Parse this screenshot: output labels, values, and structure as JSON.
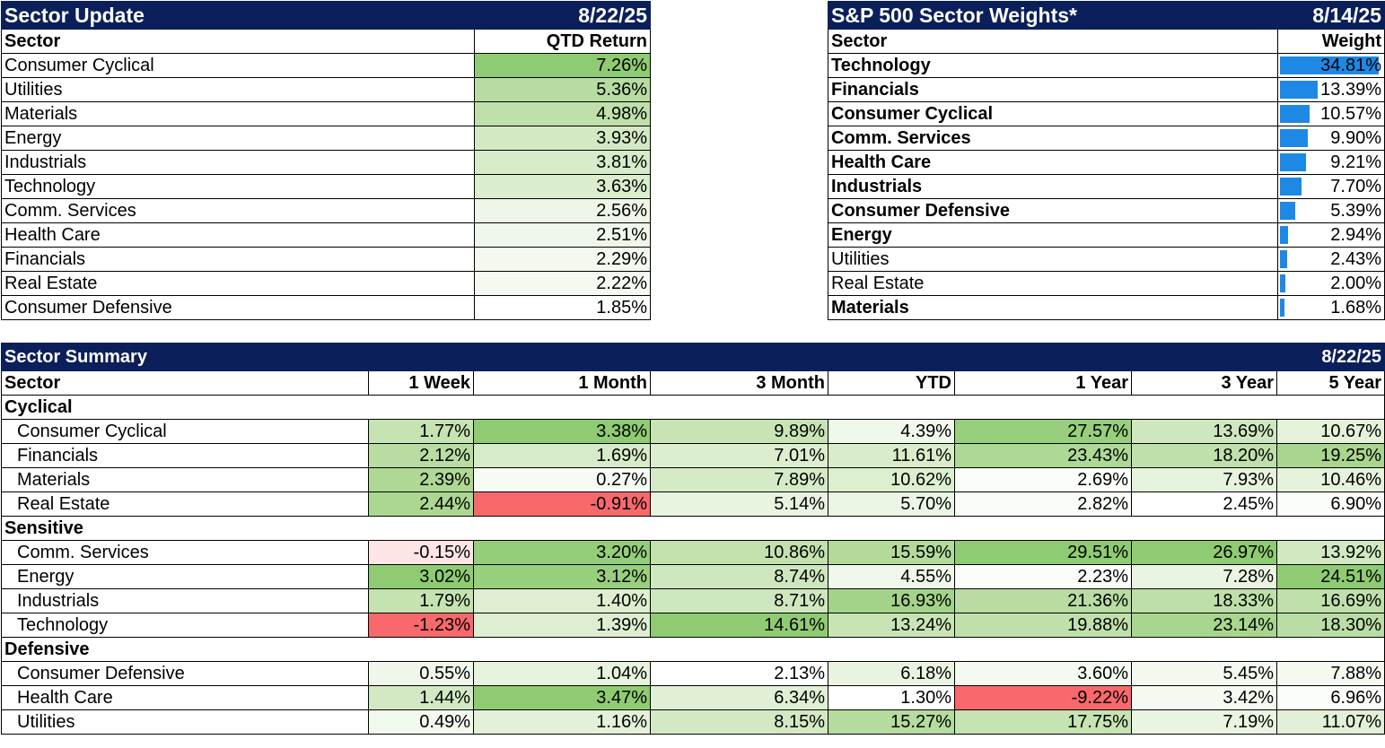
{
  "sector_update": {
    "title": "Sector Update",
    "date": "8/22/25",
    "header_sector": "Sector",
    "header_return": "QTD Return",
    "rows": [
      {
        "sector": "Consumer Cyclical",
        "value": "7.26%",
        "color": "#8fcb72"
      },
      {
        "sector": "Utilities",
        "value": "5.36%",
        "color": "#b7dca1"
      },
      {
        "sector": "Materials",
        "value": "4.98%",
        "color": "#bfe0aa"
      },
      {
        "sector": "Energy",
        "value": "3.93%",
        "color": "#d3e9c4"
      },
      {
        "sector": "Industrials",
        "value": "3.81%",
        "color": "#d6ebc7"
      },
      {
        "sector": "Technology",
        "value": "3.63%",
        "color": "#daedcc"
      },
      {
        "sector": "Comm. Services",
        "value": "2.56%",
        "color": "#eef6e8"
      },
      {
        "sector": "Health Care",
        "value": "2.51%",
        "color": "#eff7ea"
      },
      {
        "sector": "Financials",
        "value": "2.29%",
        "color": "#f3f9ef"
      },
      {
        "sector": "Real Estate",
        "value": "2.22%",
        "color": "#f5faf1"
      },
      {
        "sector": "Consumer Defensive",
        "value": "1.85%",
        "color": "#ffffff"
      }
    ]
  },
  "sector_weights": {
    "title": "S&P 500 Sector Weights*",
    "date": "8/14/25",
    "header_sector": "Sector",
    "header_weight": "Weight",
    "bar_color": "#1e88e5",
    "rows": [
      {
        "sector": "Technology",
        "value": "34.81%",
        "weight": 34.81,
        "bold": true
      },
      {
        "sector": "Financials",
        "value": "13.39%",
        "weight": 13.39,
        "bold": true
      },
      {
        "sector": "Consumer Cyclical",
        "value": "10.57%",
        "weight": 10.57,
        "bold": true
      },
      {
        "sector": "Comm. Services",
        "value": "9.90%",
        "weight": 9.9,
        "bold": true
      },
      {
        "sector": "Health Care",
        "value": "9.21%",
        "weight": 9.21,
        "bold": true
      },
      {
        "sector": "Industrials",
        "value": "7.70%",
        "weight": 7.7,
        "bold": true
      },
      {
        "sector": "Consumer Defensive",
        "value": "5.39%",
        "weight": 5.39,
        "bold": true
      },
      {
        "sector": "Energy",
        "value": "2.94%",
        "weight": 2.94,
        "bold": true
      },
      {
        "sector": "Utilities",
        "value": "2.43%",
        "weight": 2.43,
        "bold": false
      },
      {
        "sector": "Real Estate",
        "value": "2.00%",
        "weight": 2.0,
        "bold": false
      },
      {
        "sector": "Materials",
        "value": "1.68%",
        "weight": 1.68,
        "bold": true
      }
    ]
  },
  "sector_summary": {
    "title": "Sector Summary",
    "date": "8/22/25",
    "headers": [
      "Sector",
      "1 Week",
      "1 Month",
      "3 Month",
      "YTD",
      "1 Year",
      "3 Year",
      "5 Year"
    ],
    "groups": [
      {
        "name": "Cyclical",
        "rows": [
          {
            "sector": "Consumer Cyclical",
            "cells": [
              {
                "v": "1.77%",
                "c": "#c6e3b2"
              },
              {
                "v": "3.38%",
                "c": "#8fcb72"
              },
              {
                "v": "9.89%",
                "c": "#c8e4b5"
              },
              {
                "v": "4.39%",
                "c": "#f0f7eb"
              },
              {
                "v": "27.57%",
                "c": "#97cf7c"
              },
              {
                "v": "13.69%",
                "c": "#cfe7be"
              },
              {
                "v": "10.67%",
                "c": "#e4f2da"
              }
            ]
          },
          {
            "sector": "Financials",
            "cells": [
              {
                "v": "2.12%",
                "c": "#b8dca2"
              },
              {
                "v": "1.69%",
                "c": "#d6ebc7"
              },
              {
                "v": "7.01%",
                "c": "#dbeecd"
              },
              {
                "v": "11.61%",
                "c": "#d9edcb"
              },
              {
                "v": "23.43%",
                "c": "#add896"
              },
              {
                "v": "18.20%",
                "c": "#bfe0aa"
              },
              {
                "v": "19.25%",
                "c": "#a9d68f"
              }
            ]
          },
          {
            "sector": "Materials",
            "cells": [
              {
                "v": "2.39%",
                "c": "#aed894"
              },
              {
                "v": "0.27%",
                "c": "#f6fbf3"
              },
              {
                "v": "7.89%",
                "c": "#d5eac6"
              },
              {
                "v": "10.62%",
                "c": "#dcefcf"
              },
              {
                "v": "2.69%",
                "c": "#fafdf8"
              },
              {
                "v": "7.93%",
                "c": "#e6f3dd"
              },
              {
                "v": "10.46%",
                "c": "#e5f3dc"
              }
            ]
          },
          {
            "sector": "Real Estate",
            "cells": [
              {
                "v": "2.44%",
                "c": "#acd793"
              },
              {
                "v": "-0.91%",
                "c": "#f8696b"
              },
              {
                "v": "5.14%",
                "c": "#e8f4e0"
              },
              {
                "v": "5.70%",
                "c": "#ebf5e4"
              },
              {
                "v": "2.82%",
                "c": "#f9fcf7"
              },
              {
                "v": "2.45%",
                "c": "#ffffff"
              },
              {
                "v": "6.90%",
                "c": "#fbfdf9"
              }
            ]
          }
        ]
      },
      {
        "name": "Sensitive",
        "rows": [
          {
            "sector": "Comm. Services",
            "cells": [
              {
                "v": "-0.15%",
                "c": "#fde5e5"
              },
              {
                "v": "3.20%",
                "c": "#95ce7a"
              },
              {
                "v": "10.86%",
                "c": "#c2e1ad"
              },
              {
                "v": "15.59%",
                "c": "#b3da9b"
              },
              {
                "v": "29.51%",
                "c": "#8fcb72"
              },
              {
                "v": "26.97%",
                "c": "#8fcb72"
              },
              {
                "v": "13.92%",
                "c": "#d1e8c1"
              }
            ]
          },
          {
            "sector": "Energy",
            "cells": [
              {
                "v": "3.02%",
                "c": "#8fcb72"
              },
              {
                "v": "3.12%",
                "c": "#98cf7d"
              },
              {
                "v": "8.74%",
                "c": "#cfe7bf"
              },
              {
                "v": "4.55%",
                "c": "#f0f8eb"
              },
              {
                "v": "2.23%",
                "c": "#fbfdf9"
              },
              {
                "v": "7.28%",
                "c": "#e9f4e1"
              },
              {
                "v": "24.51%",
                "c": "#8fcb72"
              }
            ]
          },
          {
            "sector": "Industrials",
            "cells": [
              {
                "v": "1.79%",
                "c": "#c5e3b1"
              },
              {
                "v": "1.40%",
                "c": "#ddefd0"
              },
              {
                "v": "8.71%",
                "c": "#cfe7bf"
              },
              {
                "v": "16.93%",
                "c": "#a2d388"
              },
              {
                "v": "21.36%",
                "c": "#b8dca2"
              },
              {
                "v": "18.33%",
                "c": "#bedfa9"
              },
              {
                "v": "16.69%",
                "c": "#c0e0ab"
              }
            ]
          },
          {
            "sector": "Technology",
            "cells": [
              {
                "v": "-1.23%",
                "c": "#f8696b"
              },
              {
                "v": "1.39%",
                "c": "#ddefd0"
              },
              {
                "v": "14.61%",
                "c": "#8fcb72"
              },
              {
                "v": "13.24%",
                "c": "#c8e4b5"
              },
              {
                "v": "19.88%",
                "c": "#c0e0ab"
              },
              {
                "v": "23.14%",
                "c": "#a8d68e"
              },
              {
                "v": "18.30%",
                "c": "#b9dda4"
              }
            ]
          }
        ]
      },
      {
        "name": "Defensive",
        "rows": [
          {
            "sector": "Consumer Defensive",
            "cells": [
              {
                "v": "0.55%",
                "c": "#eff7ea"
              },
              {
                "v": "1.04%",
                "c": "#e6f3dd"
              },
              {
                "v": "2.13%",
                "c": "#ffffff"
              },
              {
                "v": "6.18%",
                "c": "#e8f4e0"
              },
              {
                "v": "3.60%",
                "c": "#f5faf1"
              },
              {
                "v": "5.45%",
                "c": "#f3f9ef"
              },
              {
                "v": "7.88%",
                "c": "#f5faf1"
              }
            ]
          },
          {
            "sector": "Health Care",
            "cells": [
              {
                "v": "1.44%",
                "c": "#d2e9c3"
              },
              {
                "v": "3.47%",
                "c": "#8fcb72"
              },
              {
                "v": "6.34%",
                "c": "#e0f0d5"
              },
              {
                "v": "1.30%",
                "c": "#ffffff"
              },
              {
                "v": "-9.22%",
                "c": "#f8696b"
              },
              {
                "v": "3.42%",
                "c": "#f5faf1"
              },
              {
                "v": "6.96%",
                "c": "#fbfdf9"
              }
            ]
          },
          {
            "sector": "Utilities",
            "cells": [
              {
                "v": "0.49%",
                "c": "#f1f8ec"
              },
              {
                "v": "1.16%",
                "c": "#e3f1d9"
              },
              {
                "v": "8.15%",
                "c": "#d3e9c4"
              },
              {
                "v": "15.27%",
                "c": "#b5db9e"
              },
              {
                "v": "17.75%",
                "c": "#c6e3b2"
              },
              {
                "v": "7.19%",
                "c": "#e9f4e1"
              },
              {
                "v": "11.07%",
                "c": "#e1f0d6"
              }
            ]
          }
        ]
      }
    ]
  }
}
